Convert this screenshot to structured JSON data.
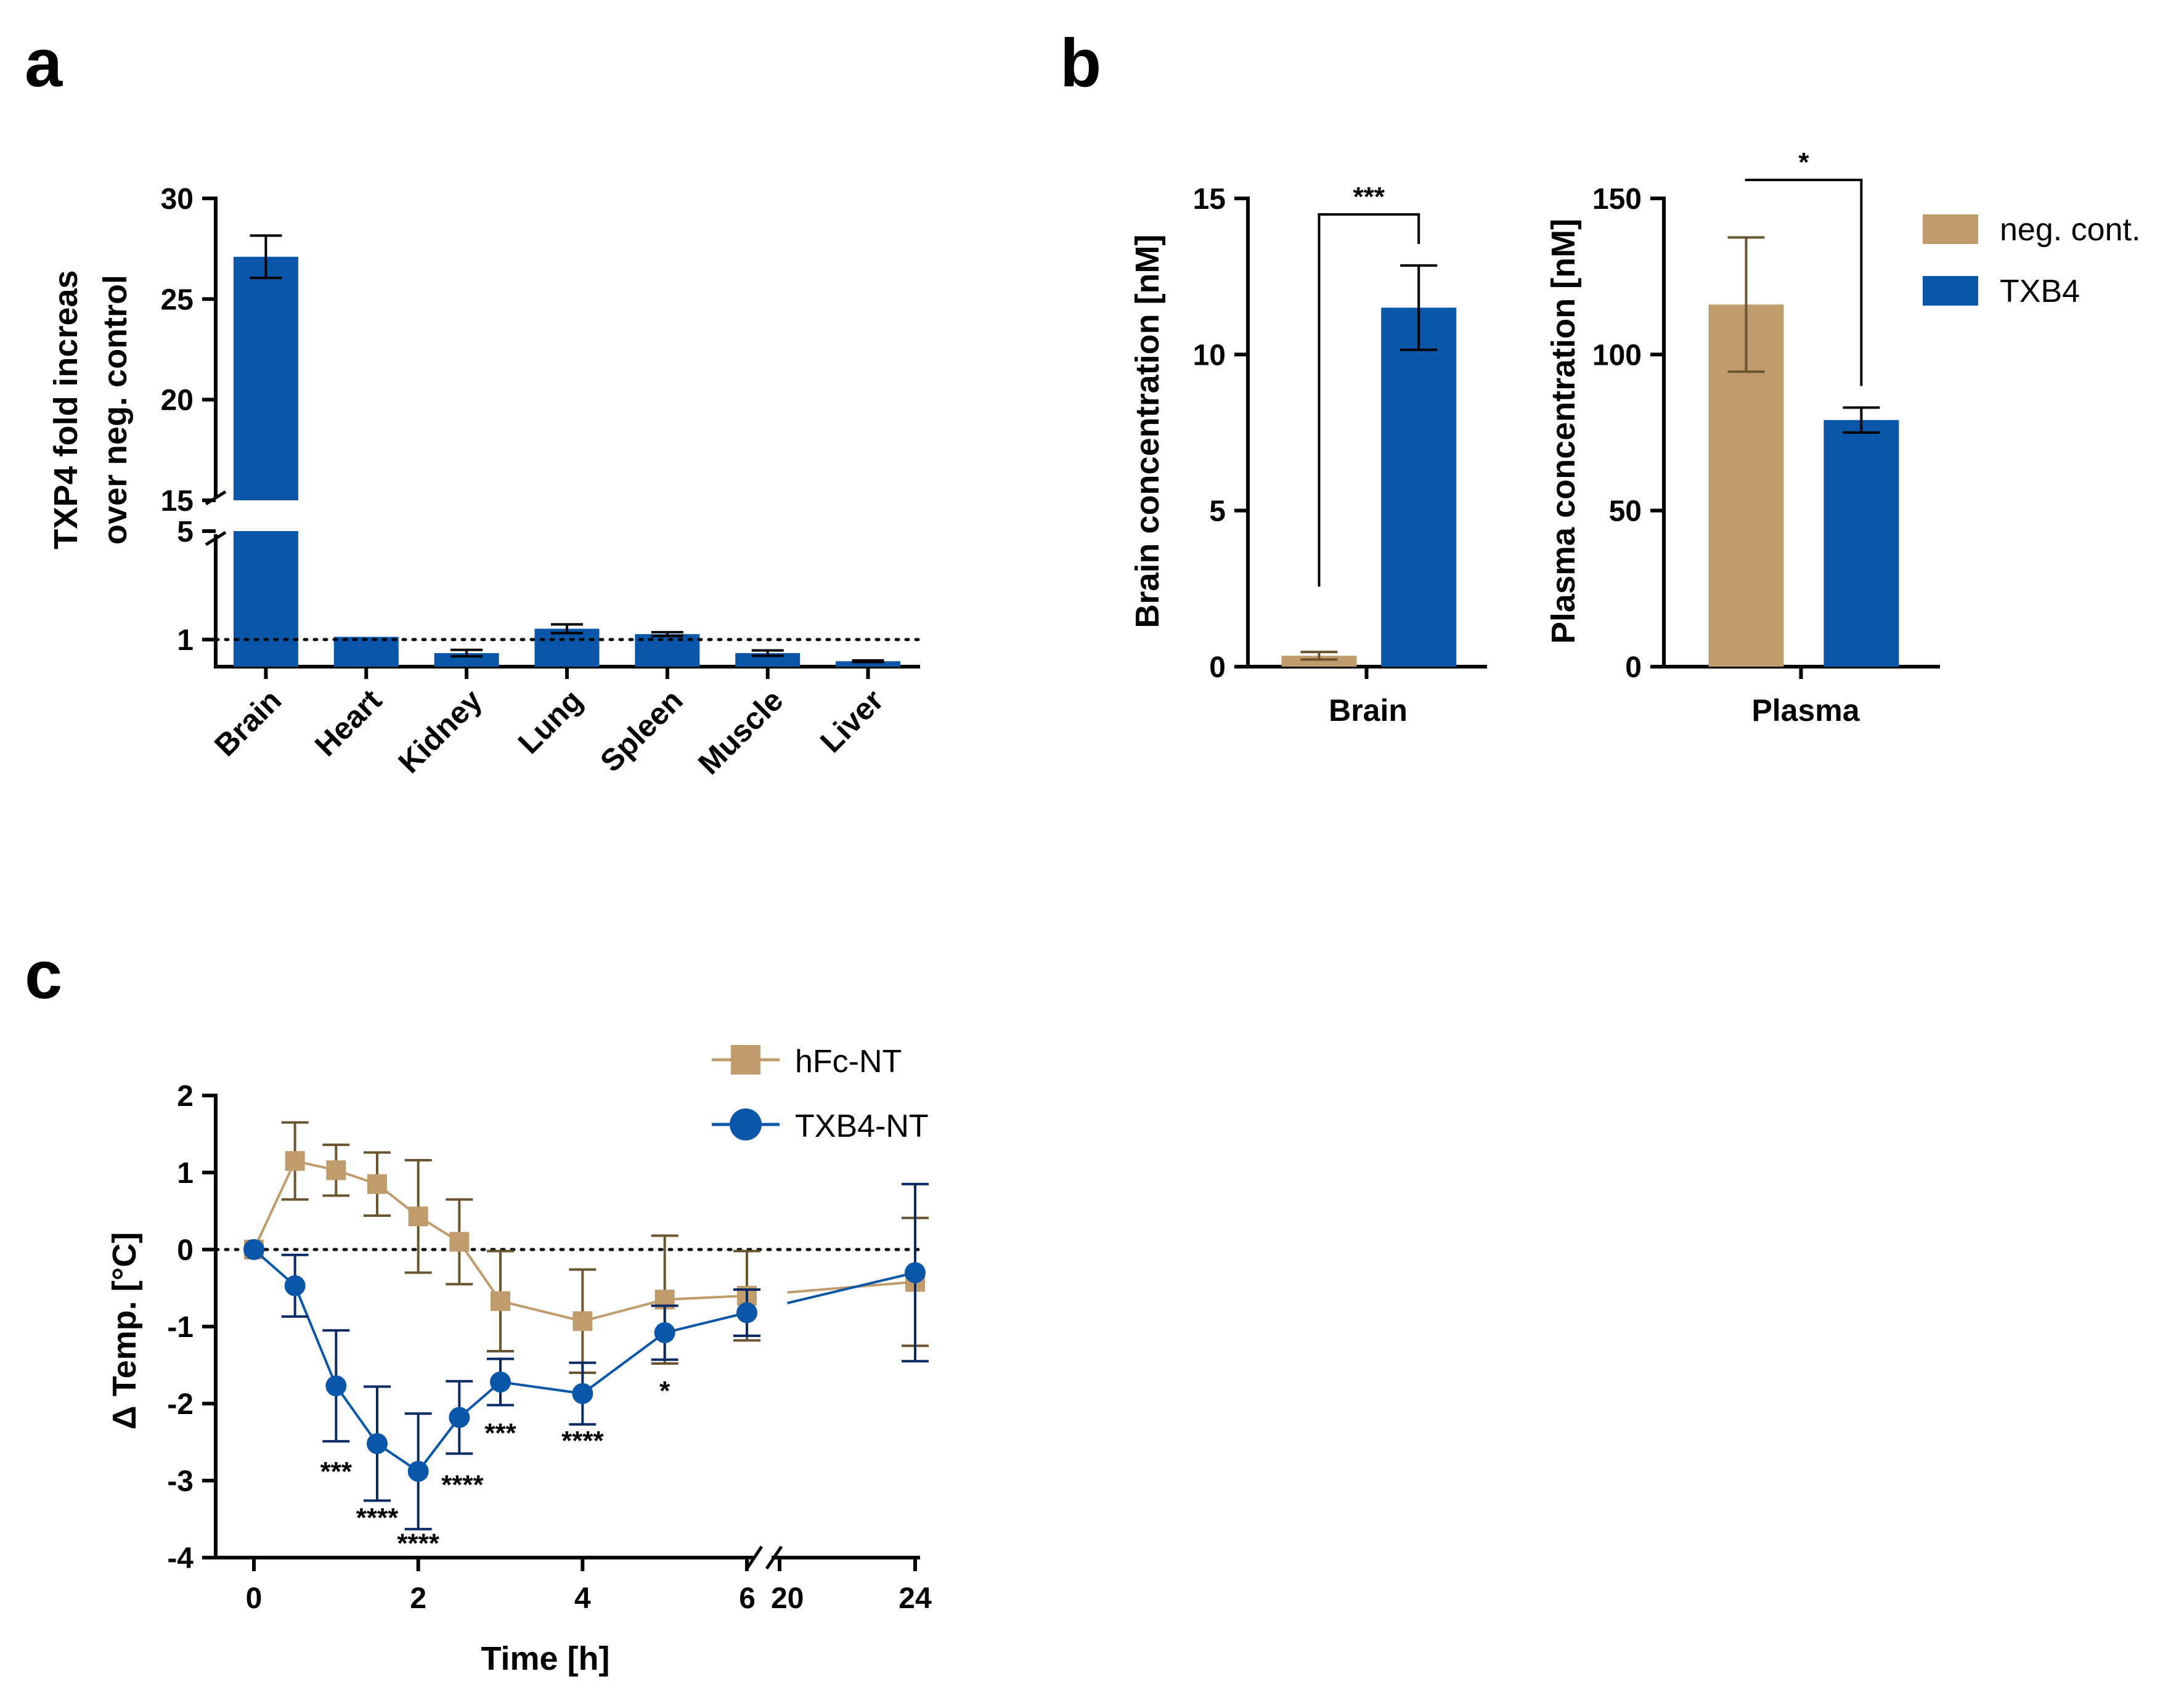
{
  "panels": {
    "a": "a",
    "b": "b",
    "c": "c"
  },
  "colors": {
    "blue": "#0a56a8",
    "tan": "#c09c6c",
    "tan_dark": "#6b5530"
  },
  "chart_data": [
    {
      "id": "a",
      "type": "bar",
      "title": "",
      "ylabel_line1": "TXP4 fold increas",
      "ylabel_line2": "over neg. control",
      "categories": [
        "Brain",
        "Heart",
        "Kidney",
        "Lung",
        "Spleen",
        "Muscle",
        "Liver"
      ],
      "values": [
        27.1,
        1.1,
        0.5,
        1.4,
        1.2,
        0.5,
        0.2
      ],
      "errors": [
        1.05,
        0,
        0.12,
        0.16,
        0.07,
        0.1,
        0.03
      ],
      "reference_line": 1,
      "axis_break": {
        "from": 5,
        "to": 15
      },
      "yticks_lower": [
        "1",
        "5"
      ],
      "yticks_upper": [
        "15",
        "20",
        "25",
        "30"
      ],
      "ylim": [
        0,
        30
      ]
    },
    {
      "id": "b-brain",
      "type": "bar",
      "ylabel": "Brain concentration [nM]",
      "xlabel": "Brain",
      "series": [
        {
          "name": "neg. cont.",
          "value": 0.35,
          "error": 0.12
        },
        {
          "name": "TXB4",
          "value": 11.5,
          "error": 1.35
        }
      ],
      "yticks": [
        "0",
        "5",
        "10",
        "15"
      ],
      "ylim": [
        0,
        15
      ],
      "significance": "***"
    },
    {
      "id": "b-plasma",
      "type": "bar",
      "ylabel": "Plasma concentration [nM]",
      "xlabel": "Plasma",
      "series": [
        {
          "name": "neg. cont.",
          "value": 116,
          "error": 21.5
        },
        {
          "name": "TXB4",
          "value": 79,
          "error": 4
        }
      ],
      "yticks": [
        "0",
        "50",
        "100",
        "150"
      ],
      "ylim": [
        0,
        150
      ],
      "significance": "*"
    },
    {
      "id": "c",
      "type": "line",
      "ylabel": "Δ Temp. [°C]",
      "xlabel": "Time [h]",
      "ylim": [
        -4,
        2
      ],
      "yticks": [
        "2",
        "1",
        "0",
        "-1",
        "-2",
        "-3",
        "-4"
      ],
      "xticks": [
        "0",
        "2",
        "4",
        "6",
        "20",
        "24"
      ],
      "reference_line": 0,
      "series": [
        {
          "name": "hFc-NT",
          "marker": "square",
          "x": [
            0,
            0.5,
            1,
            1.5,
            2,
            2.5,
            3,
            4,
            5,
            6,
            24
          ],
          "y": [
            0,
            1.15,
            1.03,
            0.85,
            0.43,
            0.1,
            -0.67,
            -0.93,
            -0.65,
            -0.6,
            -0.42
          ],
          "err": [
            0,
            0.5,
            0.33,
            0.41,
            0.73,
            0.55,
            0.65,
            0.67,
            0.83,
            0.58,
            0.83
          ]
        },
        {
          "name": "TXB4-NT",
          "marker": "circle",
          "x": [
            0,
            0.5,
            1,
            1.5,
            2,
            2.5,
            3,
            4,
            5,
            6,
            24
          ],
          "y": [
            0,
            -0.47,
            -1.77,
            -2.52,
            -2.88,
            -2.18,
            -1.72,
            -1.87,
            -1.08,
            -0.82,
            -0.3
          ],
          "err": [
            0,
            0.4,
            0.72,
            0.74,
            0.75,
            0.47,
            0.3,
            0.4,
            0.35,
            0.3,
            1.15
          ]
        }
      ],
      "annotations": [
        {
          "x": 1,
          "text": "***"
        },
        {
          "x": 1.5,
          "text": "****"
        },
        {
          "x": 2,
          "text": "****"
        },
        {
          "x": 2.5,
          "text": "****"
        },
        {
          "x": 3,
          "text": "***"
        },
        {
          "x": 4,
          "text": "****"
        },
        {
          "x": 5,
          "text": "*"
        }
      ]
    }
  ],
  "legend_b": [
    "neg. cont.",
    "TXB4"
  ],
  "legend_c": [
    "hFc-NT",
    "TXB4-NT"
  ]
}
